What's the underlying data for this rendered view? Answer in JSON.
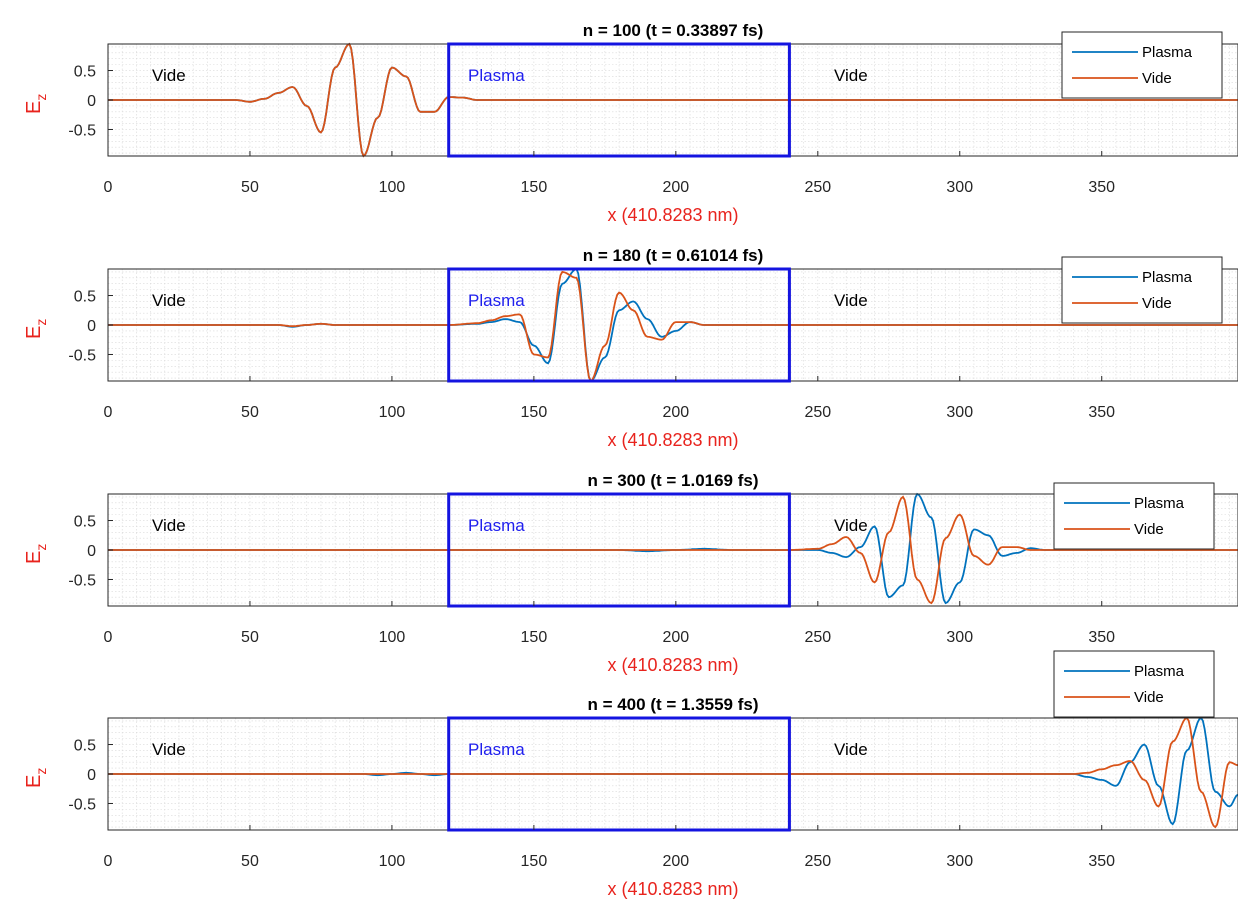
{
  "chart_data": [
    {
      "type": "line",
      "title": "n = 100 (t = 0.33897 fs)",
      "xlabel": "x (410.8283 nm)",
      "ylabel": "E",
      "ylabel_sub": "z",
      "xlim": [
        0,
        398
      ],
      "ylim": [
        -0.95,
        0.95
      ],
      "xticks": [
        "0",
        "50",
        "100",
        "150",
        "200",
        "250",
        "300",
        "350"
      ],
      "yticks": [
        "0.5",
        "0",
        "-0.5"
      ],
      "grid": true,
      "legend": {
        "position": "top-right",
        "entries": [
          "Plasma",
          "Vide"
        ]
      },
      "annotations": [
        "Vide",
        "Plasma",
        "Vide"
      ],
      "plasma_region": [
        120,
        240
      ],
      "series": [
        {
          "name": "Plasma",
          "color": "#0072BD",
          "x": [
            0,
            45,
            50,
            55,
            60,
            65,
            70,
            75,
            80,
            85,
            90,
            95,
            100,
            105,
            110,
            115,
            120,
            125,
            130,
            400
          ],
          "y": [
            0,
            0,
            -0.03,
            0.02,
            0.12,
            0.22,
            -0.1,
            -0.55,
            0.55,
            0.95,
            -0.95,
            -0.3,
            0.55,
            0.4,
            -0.2,
            -0.2,
            0.05,
            0.04,
            0,
            0
          ]
        },
        {
          "name": "Vide",
          "color": "#D95319",
          "x": [
            0,
            45,
            50,
            55,
            60,
            65,
            70,
            75,
            80,
            85,
            90,
            95,
            100,
            105,
            110,
            115,
            120,
            125,
            130,
            400
          ],
          "y": [
            0,
            0,
            -0.03,
            0.02,
            0.12,
            0.22,
            -0.1,
            -0.55,
            0.55,
            0.95,
            -0.95,
            -0.3,
            0.55,
            0.4,
            -0.2,
            -0.2,
            0.05,
            0.04,
            0,
            0
          ]
        }
      ]
    },
    {
      "type": "line",
      "title": "n = 180 (t = 0.61014 fs)",
      "xlabel": "x (410.8283 nm)",
      "ylabel": "E",
      "ylabel_sub": "z",
      "xlim": [
        0,
        398
      ],
      "ylim": [
        -0.95,
        0.95
      ],
      "xticks": [
        "0",
        "50",
        "100",
        "150",
        "200",
        "250",
        "300",
        "350"
      ],
      "yticks": [
        "0.5",
        "0",
        "-0.5"
      ],
      "grid": true,
      "legend": {
        "position": "top-right",
        "entries": [
          "Plasma",
          "Vide"
        ]
      },
      "annotations": [
        "Vide",
        "Plasma",
        "Vide"
      ],
      "plasma_region": [
        120,
        240
      ],
      "series": [
        {
          "name": "Plasma",
          "color": "#0072BD",
          "x": [
            0,
            60,
            65,
            70,
            75,
            80,
            85,
            120,
            130,
            135,
            140,
            145,
            150,
            155,
            160,
            165,
            170,
            175,
            180,
            185,
            190,
            195,
            200,
            205,
            210,
            400
          ],
          "y": [
            0,
            0,
            -0.03,
            0,
            0.02,
            0,
            0,
            0,
            0.02,
            0.05,
            0.1,
            0.05,
            -0.35,
            -0.65,
            0.7,
            0.95,
            -0.95,
            -0.55,
            0.25,
            0.4,
            0.1,
            -0.2,
            -0.1,
            0.05,
            0,
            0
          ]
        },
        {
          "name": "Vide",
          "color": "#D95319",
          "x": [
            0,
            60,
            65,
            70,
            75,
            80,
            85,
            120,
            130,
            135,
            140,
            145,
            150,
            155,
            160,
            165,
            170,
            175,
            180,
            185,
            190,
            195,
            200,
            205,
            210,
            400
          ],
          "y": [
            0,
            0,
            -0.02,
            0,
            0.02,
            0,
            0,
            0,
            0.03,
            0.08,
            0.15,
            0.18,
            -0.5,
            -0.55,
            0.9,
            0.8,
            -0.95,
            -0.35,
            0.55,
            0.25,
            -0.2,
            -0.25,
            0.05,
            0.05,
            0,
            0
          ]
        }
      ]
    },
    {
      "type": "line",
      "title": "n = 300 (t = 1.0169 fs)",
      "xlabel": "x (410.8283 nm)",
      "ylabel": "E",
      "ylabel_sub": "z",
      "xlim": [
        0,
        398
      ],
      "ylim": [
        -0.95,
        0.95
      ],
      "xticks": [
        "0",
        "50",
        "100",
        "150",
        "200",
        "250",
        "300",
        "350"
      ],
      "yticks": [
        "0.5",
        "0",
        "-0.5"
      ],
      "grid": true,
      "legend": {
        "position": "top-right",
        "entries": [
          "Plasma",
          "Vide"
        ]
      },
      "annotations": [
        "Vide",
        "Plasma",
        "Vide"
      ],
      "plasma_region": [
        120,
        240
      ],
      "series": [
        {
          "name": "Plasma",
          "color": "#0072BD",
          "x": [
            0,
            180,
            190,
            200,
            210,
            220,
            240,
            250,
            255,
            260,
            265,
            270,
            275,
            280,
            285,
            290,
            295,
            300,
            305,
            310,
            315,
            320,
            325,
            330,
            400
          ],
          "y": [
            0,
            0,
            -0.02,
            0,
            0.02,
            0,
            0,
            0,
            -0.05,
            -0.12,
            0.05,
            0.4,
            -0.8,
            -0.6,
            0.95,
            0.55,
            -0.9,
            -0.55,
            0.35,
            0.25,
            -0.1,
            -0.05,
            0.03,
            0,
            0
          ]
        },
        {
          "name": "Vide",
          "color": "#D95319",
          "x": [
            0,
            240,
            250,
            255,
            260,
            265,
            270,
            275,
            280,
            285,
            290,
            295,
            300,
            305,
            310,
            315,
            320,
            325,
            330,
            400
          ],
          "y": [
            0,
            0,
            0.02,
            0.1,
            0.22,
            -0.05,
            -0.55,
            0.3,
            0.9,
            -0.5,
            -0.9,
            0.2,
            0.6,
            -0.1,
            -0.25,
            0.05,
            0.05,
            0,
            0,
            0
          ]
        }
      ]
    },
    {
      "type": "line",
      "title": "n = 400 (t = 1.3559 fs)",
      "xlabel": "x (410.8283 nm)",
      "ylabel": "E",
      "ylabel_sub": "z",
      "xlim": [
        0,
        398
      ],
      "ylim": [
        -0.95,
        0.95
      ],
      "xticks": [
        "0",
        "50",
        "100",
        "150",
        "200",
        "250",
        "300",
        "350"
      ],
      "yticks": [
        "0.5",
        "0",
        "-0.5"
      ],
      "grid": true,
      "legend": {
        "position": "top-right",
        "entries": [
          "Plasma",
          "Vide"
        ]
      },
      "annotations": [
        "Vide",
        "Plasma",
        "Vide"
      ],
      "plasma_region": [
        120,
        240
      ],
      "series": [
        {
          "name": "Plasma",
          "color": "#0072BD",
          "x": [
            0,
            90,
            95,
            100,
            105,
            110,
            115,
            120,
            125,
            340,
            345,
            350,
            355,
            360,
            365,
            370,
            375,
            380,
            385,
            390,
            395,
            398
          ],
          "y": [
            0,
            0,
            -0.02,
            0,
            0.02,
            0,
            -0.02,
            0,
            0,
            0,
            -0.05,
            -0.1,
            -0.2,
            0.2,
            0.5,
            -0.2,
            -0.85,
            0.4,
            0.95,
            -0.3,
            -0.55,
            -0.35
          ]
        },
        {
          "name": "Vide",
          "color": "#D95319",
          "x": [
            0,
            340,
            345,
            350,
            355,
            360,
            365,
            370,
            375,
            380,
            385,
            390,
            395,
            398
          ],
          "y": [
            0,
            0,
            0.02,
            0.08,
            0.15,
            0.22,
            -0.1,
            -0.55,
            0.55,
            0.95,
            -0.3,
            -0.9,
            0.2,
            0.15
          ]
        }
      ]
    }
  ]
}
